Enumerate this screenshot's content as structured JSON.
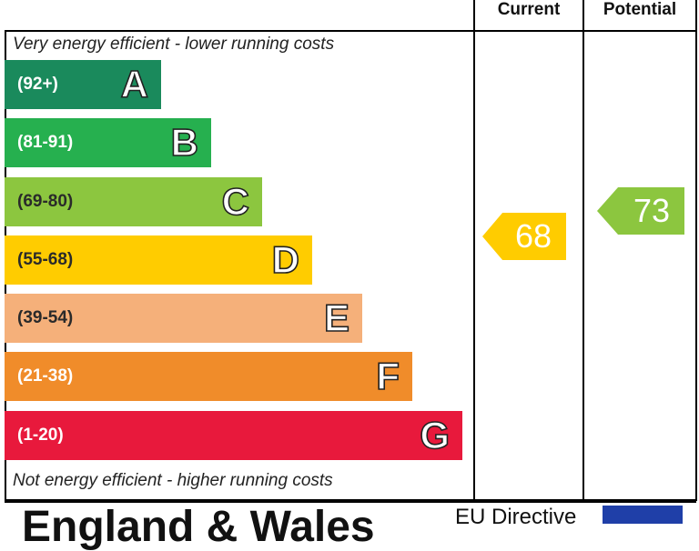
{
  "columns": {
    "current": "Current",
    "potential": "Potential"
  },
  "notes": {
    "top": "Very energy efficient - lower running costs",
    "bottom": "Not energy efficient - higher running costs"
  },
  "chart_data": {
    "type": "bar",
    "title": "",
    "categories": [
      "A",
      "B",
      "C",
      "D",
      "E",
      "F",
      "G"
    ],
    "ranges": [
      "(92+)",
      "(81-91)",
      "(69-80)",
      "(55-68)",
      "(39-54)",
      "(21-38)",
      "(1-20)"
    ],
    "colors": [
      "#1a8a5c",
      "#26b04f",
      "#8cc63f",
      "#ffcc00",
      "#f5b07a",
      "#f08c2a",
      "#e8193c"
    ],
    "current": {
      "value": 68,
      "band": "D",
      "color": "#ffcc00"
    },
    "potential": {
      "value": 73,
      "band": "C",
      "color": "#8cc63f"
    }
  },
  "footer": {
    "title": "England & Wales",
    "eu_label": "EU Directive"
  }
}
